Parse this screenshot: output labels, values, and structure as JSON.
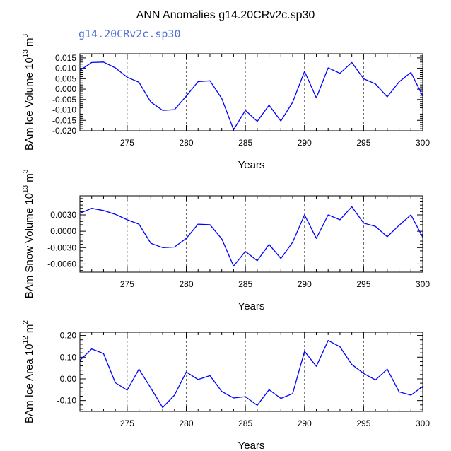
{
  "title": "ANN Anomalies g14.20CRv2c.sp30",
  "subtitle": "g14.20CRv2c.sp30",
  "colors": {
    "line": "#0000ff",
    "subtitle": "#4f6fd9",
    "frame": "#000000",
    "refline": "#444444"
  },
  "chart_data": [
    {
      "type": "line",
      "ylabel": {
        "main": "BAm Ice Volume 10",
        "sup": "13",
        "unit": " m",
        "unit_sup": "3"
      },
      "xlabel": "Years",
      "xlim": [
        271,
        300
      ],
      "ylim": [
        -0.02,
        0.017
      ],
      "yticks": [
        0.015,
        0.01,
        0.005,
        0.0,
        -0.005,
        -0.01,
        -0.015,
        -0.02
      ],
      "ytick_labels": [
        "0.015",
        "0.010",
        "0.005",
        "0.000",
        "-0.005",
        "-0.010",
        "-0.015",
        "-0.020"
      ],
      "xticks": [
        275,
        280,
        285,
        290,
        295,
        300
      ],
      "vlines": [
        275,
        280,
        285,
        290,
        295
      ],
      "x": [
        271,
        272,
        273,
        274,
        275,
        276,
        277,
        278,
        279,
        280,
        281,
        282,
        283,
        284,
        285,
        286,
        287,
        288,
        289,
        290,
        291,
        292,
        293,
        294,
        295,
        296,
        297,
        298,
        299,
        300
      ],
      "y": [
        0.009,
        0.0128,
        0.013,
        0.0102,
        0.0057,
        0.0033,
        -0.0062,
        -0.0102,
        -0.0099,
        -0.0033,
        0.0036,
        0.004,
        -0.0045,
        -0.0195,
        -0.0102,
        -0.0155,
        -0.0077,
        -0.0153,
        -0.0063,
        0.0085,
        -0.0042,
        0.0102,
        0.0076,
        0.0128,
        0.005,
        0.0025,
        -0.0037,
        0.0035,
        0.008,
        -0.0033
      ]
    },
    {
      "type": "line",
      "ylabel": {
        "main": "BAm Snow Volume 10",
        "sup": "13",
        "unit": " m",
        "unit_sup": "3"
      },
      "xlabel": "Years",
      "xlim": [
        271,
        300
      ],
      "ylim": [
        -0.0075,
        0.0065
      ],
      "yticks": [
        0.003,
        0.0,
        -0.003,
        -0.006
      ],
      "ytick_labels": [
        "0.0030",
        "0.0000",
        "-0.0030",
        "-0.0060"
      ],
      "xticks": [
        275,
        280,
        285,
        290,
        295,
        300
      ],
      "vlines": [
        275,
        280,
        285,
        290,
        295
      ],
      "x": [
        271,
        272,
        273,
        274,
        275,
        276,
        277,
        278,
        279,
        280,
        281,
        282,
        283,
        284,
        285,
        286,
        287,
        288,
        289,
        290,
        291,
        292,
        293,
        294,
        295,
        296,
        297,
        298,
        299,
        300
      ],
      "y": [
        0.0033,
        0.0042,
        0.0038,
        0.0031,
        0.0021,
        0.0013,
        -0.0022,
        -0.003,
        -0.0029,
        -0.0013,
        0.0013,
        0.0012,
        -0.0014,
        -0.0064,
        -0.0037,
        -0.0054,
        -0.0024,
        -0.005,
        -0.002,
        0.003,
        -0.0013,
        0.003,
        0.0021,
        0.0045,
        0.0015,
        0.0009,
        -0.001,
        0.0011,
        0.003,
        -0.0011
      ]
    },
    {
      "type": "line",
      "ylabel": {
        "main": "BAm Ice Area 10",
        "sup": "12",
        "unit": " m",
        "unit_sup": "2"
      },
      "xlabel": "Years",
      "xlim": [
        271,
        300
      ],
      "ylim": [
        -0.15,
        0.215
      ],
      "yticks": [
        0.2,
        0.1,
        0.0,
        -0.1
      ],
      "ytick_labels": [
        "0.20",
        "0.10",
        "0.00",
        "-0.10"
      ],
      "xticks": [
        275,
        280,
        285,
        290,
        295,
        300
      ],
      "vlines": [
        275,
        280,
        285,
        290,
        295
      ],
      "x": [
        271,
        272,
        273,
        274,
        275,
        276,
        277,
        278,
        279,
        280,
        281,
        282,
        283,
        284,
        285,
        286,
        287,
        288,
        289,
        290,
        291,
        292,
        293,
        294,
        295,
        296,
        297,
        298,
        299,
        300
      ],
      "y": [
        0.085,
        0.138,
        0.117,
        -0.018,
        -0.052,
        0.045,
        -0.042,
        -0.132,
        -0.075,
        0.032,
        -0.003,
        0.015,
        -0.058,
        -0.088,
        -0.082,
        -0.122,
        -0.05,
        -0.09,
        -0.068,
        0.127,
        0.058,
        0.177,
        0.148,
        0.066,
        0.025,
        -0.005,
        0.045,
        -0.06,
        -0.075,
        -0.035
      ]
    }
  ]
}
